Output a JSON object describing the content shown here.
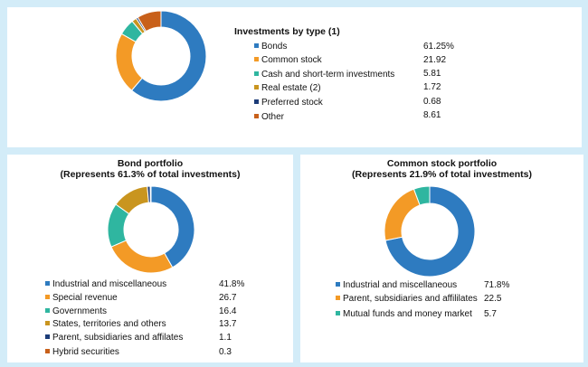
{
  "chart_data": [
    {
      "type": "pie",
      "title": "Investments by type (1)",
      "categories": [
        "Bonds",
        "Common stock",
        "Cash and short-term investments",
        "Real estate (2)",
        "Preferred stock",
        "Other"
      ],
      "values": [
        61.25,
        21.92,
        5.81,
        1.72,
        0.68,
        8.61
      ],
      "labels": [
        "61.25%",
        "21.92",
        "5.81",
        "1.72",
        "0.68",
        "8.61"
      ],
      "colors": [
        "#2e7bc0",
        "#f39a26",
        "#2fb6a0",
        "#c9951f",
        "#1c3c78",
        "#c8601a"
      ]
    },
    {
      "type": "pie",
      "title": "Bond portfolio",
      "subtitle": "(Represents 61.3% of total investments)",
      "categories": [
        "Industrial and miscellaneous",
        "Special revenue",
        "Governments",
        "States, territories and others",
        "Parent, subsidiaries and affilates",
        "Hybrid securities"
      ],
      "values": [
        41.8,
        26.7,
        16.4,
        13.7,
        1.1,
        0.3
      ],
      "labels": [
        "41.8%",
        "26.7",
        "16.4",
        "13.7",
        "1.1",
        "0.3"
      ],
      "colors": [
        "#2e7bc0",
        "#f39a26",
        "#2fb6a0",
        "#c9951f",
        "#1c3c78",
        "#c8601a"
      ]
    },
    {
      "type": "pie",
      "title": "Common stock portfolio",
      "subtitle": "(Represents 21.9% of total investments)",
      "categories": [
        "Industrial and miscellaneous",
        "Parent, subsidiaries and affililates",
        "Mutual funds and money market"
      ],
      "values": [
        71.8,
        22.5,
        5.7
      ],
      "labels": [
        "71.8%",
        "22.5",
        "5.7"
      ],
      "colors": [
        "#2e7bc0",
        "#f39a26",
        "#2fb6a0"
      ]
    }
  ]
}
